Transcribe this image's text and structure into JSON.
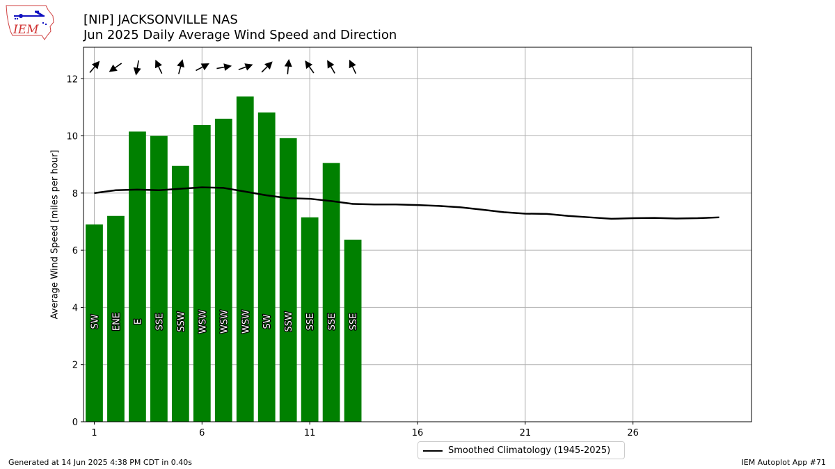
{
  "header": {
    "title_line1": "[NIP] JACKSONVILLE NAS",
    "title_line2": "Jun 2025 Daily Average Wind Speed and Direction"
  },
  "logo": {
    "text": "IEM"
  },
  "footer": {
    "generated": "Generated at 14 Jun 2025 4:38 PM CDT in 0.40s",
    "app": "IEM Autoplot App #71"
  },
  "legend": {
    "climatology_label": "Smoothed Climatology (1945-2025)"
  },
  "colors": {
    "bar": "#008000",
    "line": "#000000",
    "grid": "#b0b0b0",
    "label_outline": "#000000",
    "label_fill": "#ffffff"
  },
  "chart_data": {
    "type": "bar",
    "ylabel": "Average Wind Speed [miles per hour]",
    "xlabel": "",
    "xlim": [
      0.5,
      31.5
    ],
    "ylim": [
      0,
      13.1
    ],
    "x_ticks": [
      1,
      6,
      11,
      16,
      21,
      26
    ],
    "y_ticks": [
      0,
      2,
      4,
      6,
      8,
      10,
      12
    ],
    "grid": true,
    "legend_position": "bottom-center",
    "bars": {
      "days": [
        1,
        2,
        3,
        4,
        5,
        6,
        7,
        8,
        9,
        10,
        11,
        12,
        13
      ],
      "values": [
        6.9,
        7.2,
        10.15,
        10.0,
        8.95,
        10.38,
        10.6,
        11.38,
        10.82,
        9.92,
        7.15,
        9.05,
        6.37
      ],
      "direction_labels": [
        "SW",
        "ENE",
        "E",
        "SSE",
        "SSW",
        "WSW",
        "WSW",
        "WSW",
        "SW",
        "SSW",
        "SSE",
        "SSE",
        "SSE"
      ],
      "arrow_angles_deg": [
        40,
        235,
        190,
        335,
        15,
        62,
        80,
        70,
        45,
        5,
        325,
        330,
        335
      ]
    },
    "series": [
      {
        "name": "Smoothed Climatology (1945-2025)",
        "days": [
          1,
          2,
          3,
          4,
          5,
          6,
          7,
          8,
          9,
          10,
          11,
          12,
          13,
          14,
          15,
          16,
          17,
          18,
          19,
          20,
          21,
          22,
          23,
          24,
          25,
          26,
          27,
          28,
          29,
          30
        ],
        "values": [
          8.0,
          8.1,
          8.12,
          8.1,
          8.15,
          8.2,
          8.18,
          8.05,
          7.92,
          7.82,
          7.8,
          7.72,
          7.62,
          7.6,
          7.6,
          7.58,
          7.55,
          7.5,
          7.42,
          7.33,
          7.28,
          7.27,
          7.2,
          7.15,
          7.1,
          7.12,
          7.13,
          7.11,
          7.12,
          7.15
        ]
      }
    ]
  }
}
